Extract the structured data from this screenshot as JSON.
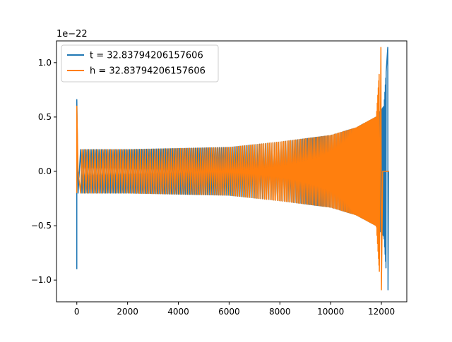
{
  "chart_data": {
    "type": "line",
    "title": "",
    "xlabel": "",
    "ylabel": "",
    "xlim": [
      -800,
      13000
    ],
    "ylim": [
      -1.2,
      1.2
    ],
    "y_multiplier_label": "1e−22",
    "x_ticks": [
      {
        "value": 0,
        "label": "0"
      },
      {
        "value": 2000,
        "label": "2000"
      },
      {
        "value": 4000,
        "label": "4000"
      },
      {
        "value": 6000,
        "label": "6000"
      },
      {
        "value": 8000,
        "label": "8000"
      },
      {
        "value": 10000,
        "label": "10000"
      },
      {
        "value": 12000,
        "label": "12000"
      }
    ],
    "y_ticks": [
      {
        "value": -1.0,
        "label": "−1.0"
      },
      {
        "value": -0.5,
        "label": "−0.5"
      },
      {
        "value": 0.0,
        "label": "0.0"
      },
      {
        "value": 0.5,
        "label": "0.5"
      },
      {
        "value": 1.0,
        "label": "1.0"
      }
    ],
    "grid": false,
    "legend_position": "top-left",
    "series": [
      {
        "name": "t = 32.83794206157606",
        "color": "#1f77b4",
        "points": [
          [
            0,
            -0.9
          ],
          [
            0,
            0.66
          ],
          [
            50,
            -0.2
          ],
          [
            150,
            0.2
          ],
          [
            1000,
            -0.2
          ],
          [
            2000,
            0.2
          ],
          [
            4000,
            -0.21
          ],
          [
            6000,
            0.22
          ],
          [
            8000,
            -0.27
          ],
          [
            10000,
            0.33
          ],
          [
            11000,
            -0.4
          ],
          [
            11800,
            0.5
          ],
          [
            12100,
            -0.6
          ],
          [
            12250,
            1.14
          ],
          [
            12260,
            -1.09
          ],
          [
            12280,
            0.0
          ]
        ]
      },
      {
        "name": "h = 32.83794206157606",
        "color": "#ff7f0e",
        "points": [
          [
            0,
            -0.2
          ],
          [
            0,
            0.6
          ],
          [
            50,
            0.0
          ],
          [
            150,
            -0.2
          ],
          [
            1000,
            0.2
          ],
          [
            2000,
            -0.2
          ],
          [
            4000,
            0.21
          ],
          [
            6000,
            -0.22
          ],
          [
            8000,
            0.27
          ],
          [
            10000,
            -0.33
          ],
          [
            11000,
            0.4
          ],
          [
            11800,
            -0.5
          ],
          [
            11980,
            1.14
          ],
          [
            12000,
            -1.09
          ],
          [
            12050,
            0.0
          ],
          [
            12300,
            0.0
          ]
        ]
      }
    ]
  }
}
